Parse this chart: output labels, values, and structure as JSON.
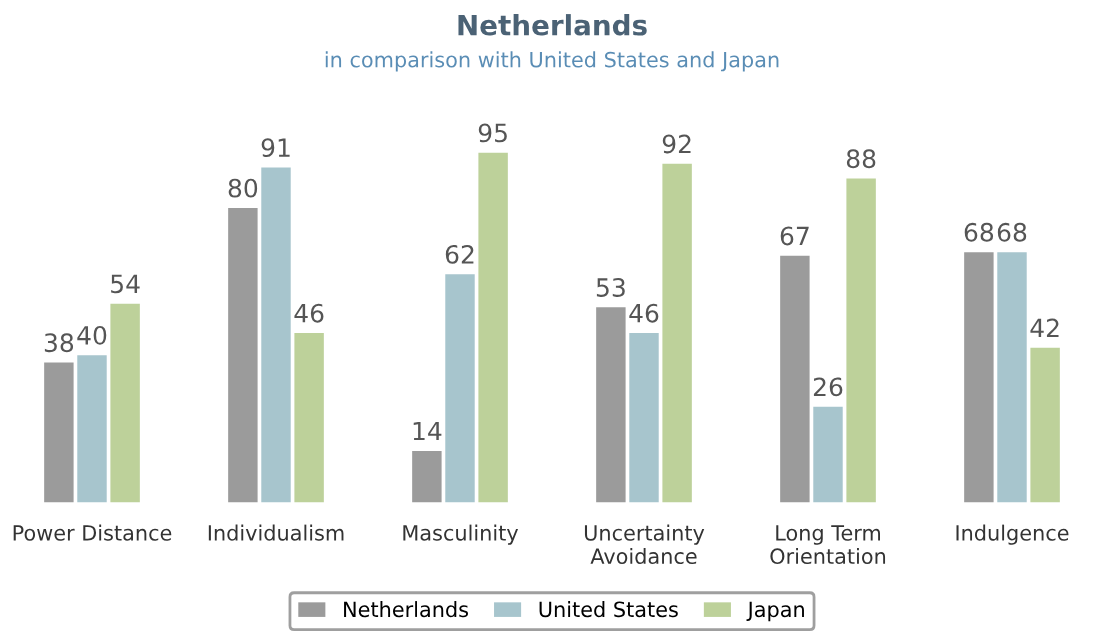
{
  "chart_data": {
    "type": "bar",
    "title": "Netherlands",
    "subtitle": "in comparison with United States and Japan",
    "categories": [
      "Power Distance",
      "Individualism",
      "Masculinity",
      "Uncertainty\nAvoidance",
      "Long Term\nOrientation",
      "Indulgence"
    ],
    "series": [
      {
        "name": "Netherlands",
        "color": "#9b9b9b",
        "values": [
          38,
          80,
          14,
          53,
          67,
          68
        ]
      },
      {
        "name": "United States",
        "color": "#a7c5cd",
        "values": [
          40,
          91,
          62,
          46,
          26,
          68
        ]
      },
      {
        "name": "Japan",
        "color": "#bdd19a",
        "values": [
          54,
          46,
          95,
          92,
          88,
          42
        ]
      }
    ],
    "data_labels": true,
    "legend": "bottom",
    "grid": false
  }
}
